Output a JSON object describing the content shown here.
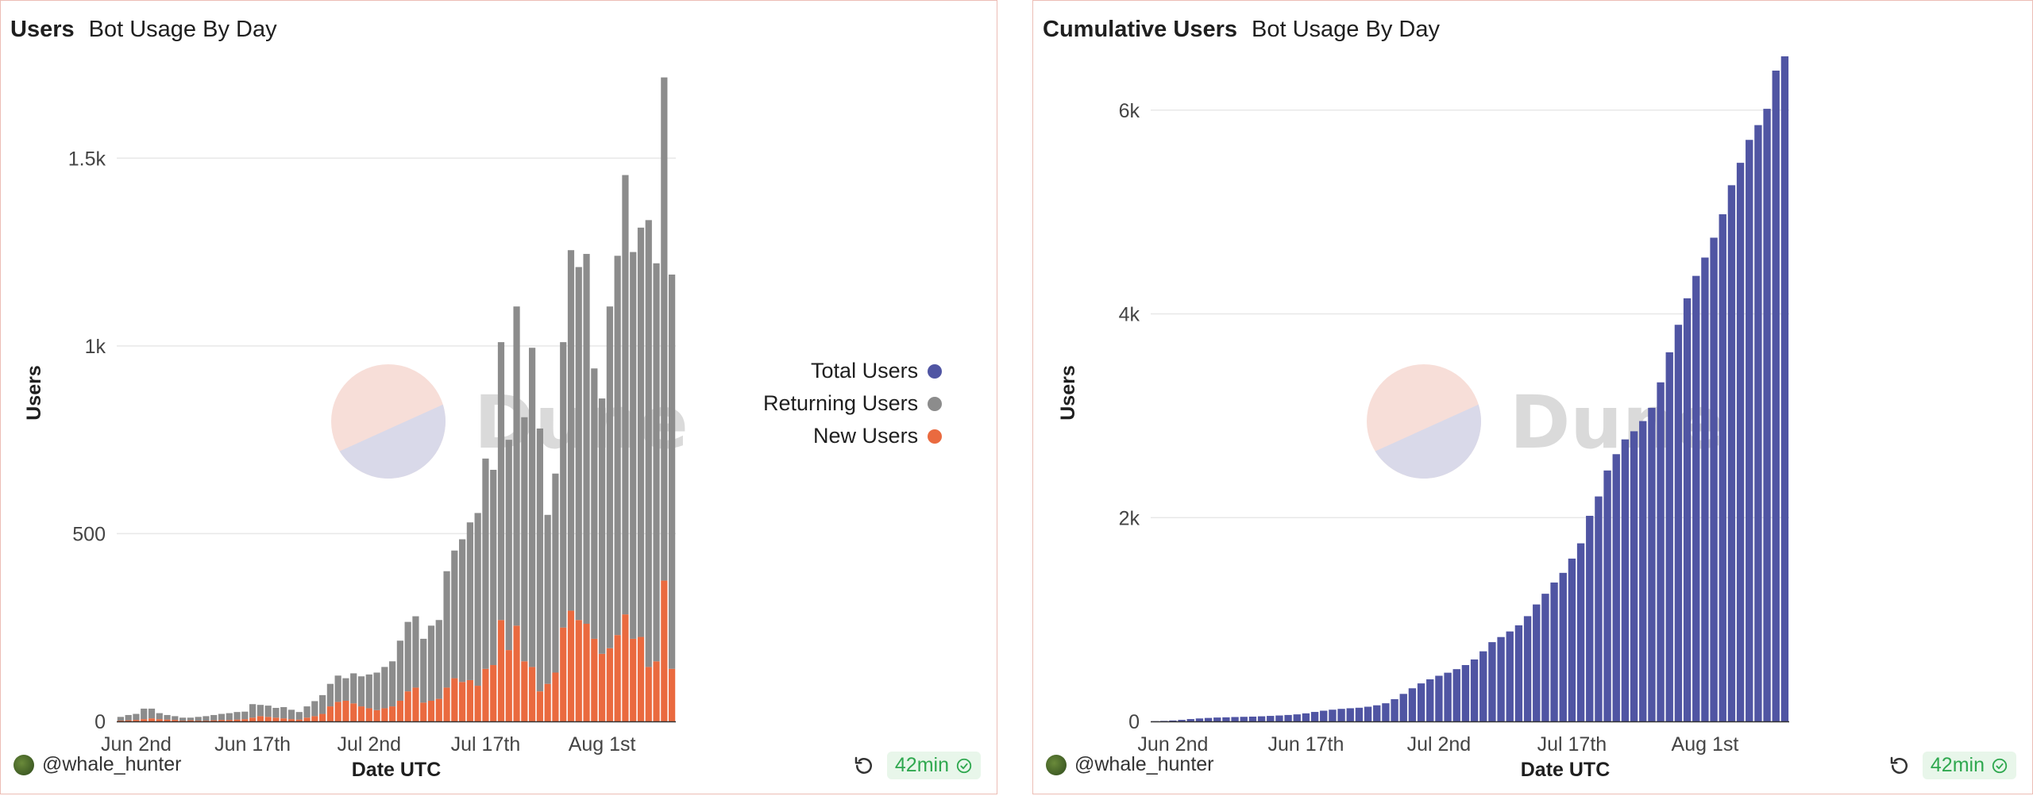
{
  "panels": [
    {
      "title": "Users",
      "subtitle": "Bot Usage By Day",
      "author": "@whale_hunter",
      "freshness": "42min"
    },
    {
      "title": "Cumulative Users",
      "subtitle": "Bot Usage By Day",
      "author": "@whale_hunter",
      "freshness": "42min"
    }
  ],
  "watermark": "Dune",
  "colors": {
    "total": "#5055a3",
    "returning": "#8c8c8c",
    "new": "#ea6a3f",
    "grid": "#e8e8e8"
  },
  "chart_data": [
    {
      "type": "bar",
      "stacked": true,
      "xlabel": "Date UTC",
      "ylabel": "Users",
      "x_start": "2024-05-31",
      "x_step_days": 1,
      "x_ticks": [
        {
          "date": "2024-06-02",
          "label": "Jun 2nd"
        },
        {
          "date": "2024-06-17",
          "label": "Jun 17th"
        },
        {
          "date": "2024-07-02",
          "label": "Jul 2nd"
        },
        {
          "date": "2024-07-17",
          "label": "Jul 17th"
        },
        {
          "date": "2024-08-01",
          "label": "Aug 1st"
        }
      ],
      "y_ticks": [
        {
          "value": 0,
          "label": "0"
        },
        {
          "value": 500,
          "label": "500"
        },
        {
          "value": 1000,
          "label": "1k"
        },
        {
          "value": 1500,
          "label": "1.5k"
        }
      ],
      "ylim": [
        0,
        1750
      ],
      "legend": {
        "placement": "right",
        "entries": [
          "Total Users",
          "Returning Users",
          "New Users"
        ]
      },
      "series": [
        {
          "name": "New Users",
          "values": [
            2,
            3,
            4,
            6,
            8,
            6,
            5,
            4,
            2,
            3,
            2,
            2,
            3,
            4,
            4,
            5,
            6,
            10,
            14,
            12,
            10,
            8,
            6,
            5,
            10,
            14,
            20,
            40,
            52,
            55,
            48,
            40,
            35,
            30,
            35,
            40,
            55,
            80,
            90,
            50,
            55,
            60,
            90,
            115,
            105,
            110,
            95,
            140,
            150,
            270,
            190,
            255,
            160,
            145,
            80,
            100,
            130,
            250,
            295,
            270,
            260,
            220,
            180,
            195,
            230,
            285,
            220,
            225,
            145,
            160,
            375,
            140
          ]
        },
        {
          "name": "Returning Users",
          "values": [
            10,
            14,
            16,
            28,
            26,
            16,
            12,
            10,
            8,
            7,
            10,
            12,
            14,
            16,
            18,
            20,
            20,
            36,
            30,
            30,
            26,
            30,
            25,
            20,
            30,
            40,
            50,
            60,
            70,
            60,
            80,
            80,
            90,
            100,
            110,
            120,
            160,
            185,
            190,
            170,
            200,
            210,
            310,
            340,
            380,
            420,
            460,
            560,
            520,
            740,
            560,
            850,
            650,
            850,
            700,
            450,
            530,
            760,
            960,
            940,
            985,
            720,
            680,
            910,
            1010,
            1170,
            1030,
            1090,
            1190,
            1060,
            1340,
            1050
          ]
        }
      ]
    },
    {
      "type": "bar",
      "xlabel": "Date UTC",
      "ylabel": "Users",
      "x_start": "2024-05-31",
      "x_step_days": 1,
      "x_ticks": [
        {
          "date": "2024-06-02",
          "label": "Jun 2nd"
        },
        {
          "date": "2024-06-17",
          "label": "Jun 17th"
        },
        {
          "date": "2024-07-02",
          "label": "Jul 2nd"
        },
        {
          "date": "2024-07-17",
          "label": "Jul 17th"
        },
        {
          "date": "2024-08-01",
          "label": "Aug 1st"
        }
      ],
      "y_ticks": [
        {
          "value": 0,
          "label": "0"
        },
        {
          "value": 2000,
          "label": "2k"
        },
        {
          "value": 4000,
          "label": "4k"
        },
        {
          "value": 6000,
          "label": "6k"
        }
      ],
      "ylim": [
        0,
        6450
      ],
      "series": [
        {
          "name": "Total Users",
          "values": [
            2,
            5,
            9,
            15,
            23,
            29,
            34,
            38,
            40,
            43,
            45,
            47,
            50,
            54,
            58,
            63,
            69,
            79,
            93,
            105,
            115,
            123,
            129,
            134,
            144,
            158,
            178,
            218,
            270,
            325,
            373,
            413,
            448,
            478,
            513,
            553,
            608,
            688,
            778,
            828,
            883,
            943,
            1033,
            1148,
            1253,
            1363,
            1458,
            1598,
            1748,
            2018,
            2208,
            2463,
            2623,
            2768,
            2848,
            2948,
            3078,
            3328,
            3623,
            3893,
            4153,
            4373,
            4553,
            4748,
            4978,
            5263,
            5483,
            5708,
            5853,
            6013,
            6388,
            6528
          ]
        }
      ]
    }
  ]
}
